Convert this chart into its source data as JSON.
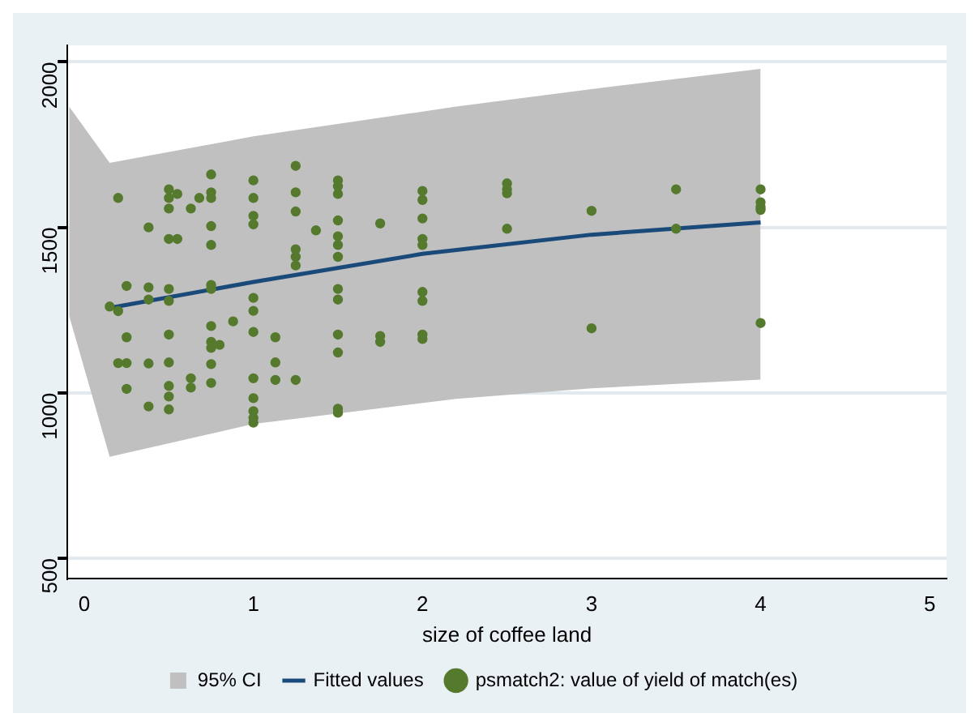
{
  "chart_data": {
    "type": "scatter",
    "xlabel": "size of coffee land",
    "xlim": [
      -0.1,
      5.1
    ],
    "xticks": [
      0,
      1,
      2,
      3,
      4,
      5
    ],
    "ylim": [
      440,
      2050
    ],
    "yticks": [
      500,
      1000,
      1500,
      2000
    ],
    "grid": "y",
    "legend": "bottom",
    "marker": "circle",
    "series": [
      {
        "name": "95% CI",
        "type": "area",
        "color": "#c0c0c0",
        "marker": "none",
        "x": [
          -0.09,
          0.15,
          1,
          2.2,
          3,
          4
        ],
        "values": [
          null,
          null,
          null,
          null,
          null,
          null
        ],
        "lower": [
          1233,
          807,
          906,
          982,
          1014,
          1040
        ],
        "upper": [
          1865,
          1695,
          1775,
          1865,
          1918,
          1979
        ]
      },
      {
        "name": "Fitted values",
        "type": "line",
        "color": "#1a4a7a",
        "marker": "none",
        "x": [
          0.13,
          1,
          2,
          3,
          4
        ],
        "values": [
          1255,
          1335,
          1420,
          1478,
          1515
        ]
      },
      {
        "name": "psmatch2: value of yield of match(es)",
        "color": "#557a2e",
        "x": [
          0.15,
          0.2,
          0.2,
          0.25,
          0.25,
          0.2,
          0.25,
          0.25,
          0.38,
          0.38,
          0.38,
          0.38,
          0.38,
          0.5,
          0.5,
          0.5,
          0.5,
          0.5,
          0.5,
          0.5,
          0.5,
          0.5,
          0.5,
          0.5,
          0.55,
          0.55,
          0.63,
          0.63,
          0.63,
          0.68,
          0.75,
          0.75,
          0.75,
          0.75,
          0.75,
          0.75,
          0.75,
          0.75,
          0.75,
          0.75,
          0.75,
          0.75,
          0.8,
          0.88,
          1,
          1,
          1,
          1,
          1,
          1,
          1,
          1,
          1,
          1,
          1,
          1,
          1.13,
          1.13,
          1.13,
          1.25,
          1.25,
          1.25,
          1.25,
          1.25,
          1.25,
          1.25,
          1.37,
          1.5,
          1.5,
          1.5,
          1.5,
          1.5,
          1.5,
          1.5,
          1.5,
          1.5,
          1.5,
          1.5,
          1.5,
          1.5,
          1.75,
          1.75,
          1.75,
          2,
          2,
          2,
          2,
          2,
          2,
          2,
          2,
          2,
          2.5,
          2.5,
          2.5,
          2.5,
          3,
          3,
          3.5,
          3.5,
          4,
          4,
          4,
          4,
          4
        ],
        "values": [
          1261,
          1247,
          1589,
          1323,
          1168,
          1090,
          1090,
          1012,
          1089,
          1500,
          959,
          1319,
          1282,
          1615,
          1589,
          1557,
          1465,
          1314,
          1278,
          1176,
          1092,
          1021,
          989,
          950,
          1601,
          1465,
          1557,
          1044,
          1016,
          1589,
          1660,
          1606,
          1589,
          1504,
          1447,
          1326,
          1314,
          1202,
          1154,
          1136,
          1087,
          1030,
          1145,
          1216,
          1642,
          1589,
          1535,
          1509,
          1287,
          1248,
          1184,
          1044,
          984,
          945,
          924,
          910,
          1168,
          1092,
          1039,
          1686,
          1606,
          1548,
          1434,
          1411,
          1385,
          1039,
          1491,
          1642,
          1624,
          1601,
          1521,
          1473,
          1447,
          1411,
          1314,
          1282,
          1176,
          1122,
          952,
          940,
          1512,
          1172,
          1154,
          1610,
          1583,
          1527,
          1465,
          1447,
          1305,
          1278,
          1176,
          1163,
          1633,
          1615,
          1603,
          1496,
          1550,
          1195,
          1615,
          1496,
          1615,
          1576,
          1562,
          1553,
          1211
        ]
      }
    ]
  }
}
